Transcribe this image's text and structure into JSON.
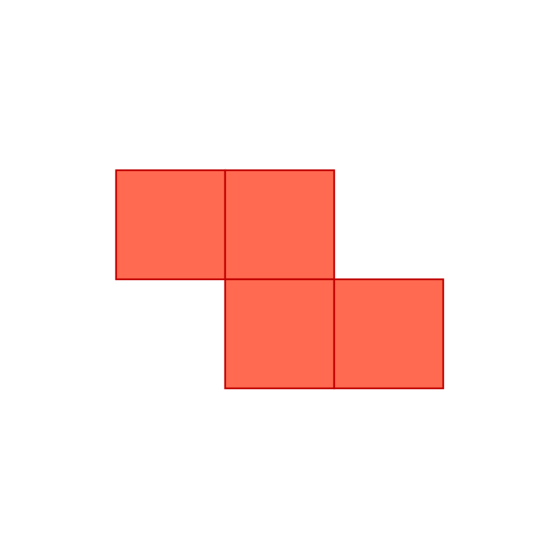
{
  "figure": {
    "shape": "Z-tetromino",
    "colors": {
      "fill": "#ff6a50",
      "stroke": "#c00000",
      "background": "#ffffff"
    },
    "cells": [
      {
        "id": "top-left",
        "col": 0,
        "row": 0
      },
      {
        "id": "top-right",
        "col": 1,
        "row": 0
      },
      {
        "id": "bottom-left",
        "col": 1,
        "row": 1
      },
      {
        "id": "bottom-right",
        "col": 2,
        "row": 1
      }
    ]
  }
}
